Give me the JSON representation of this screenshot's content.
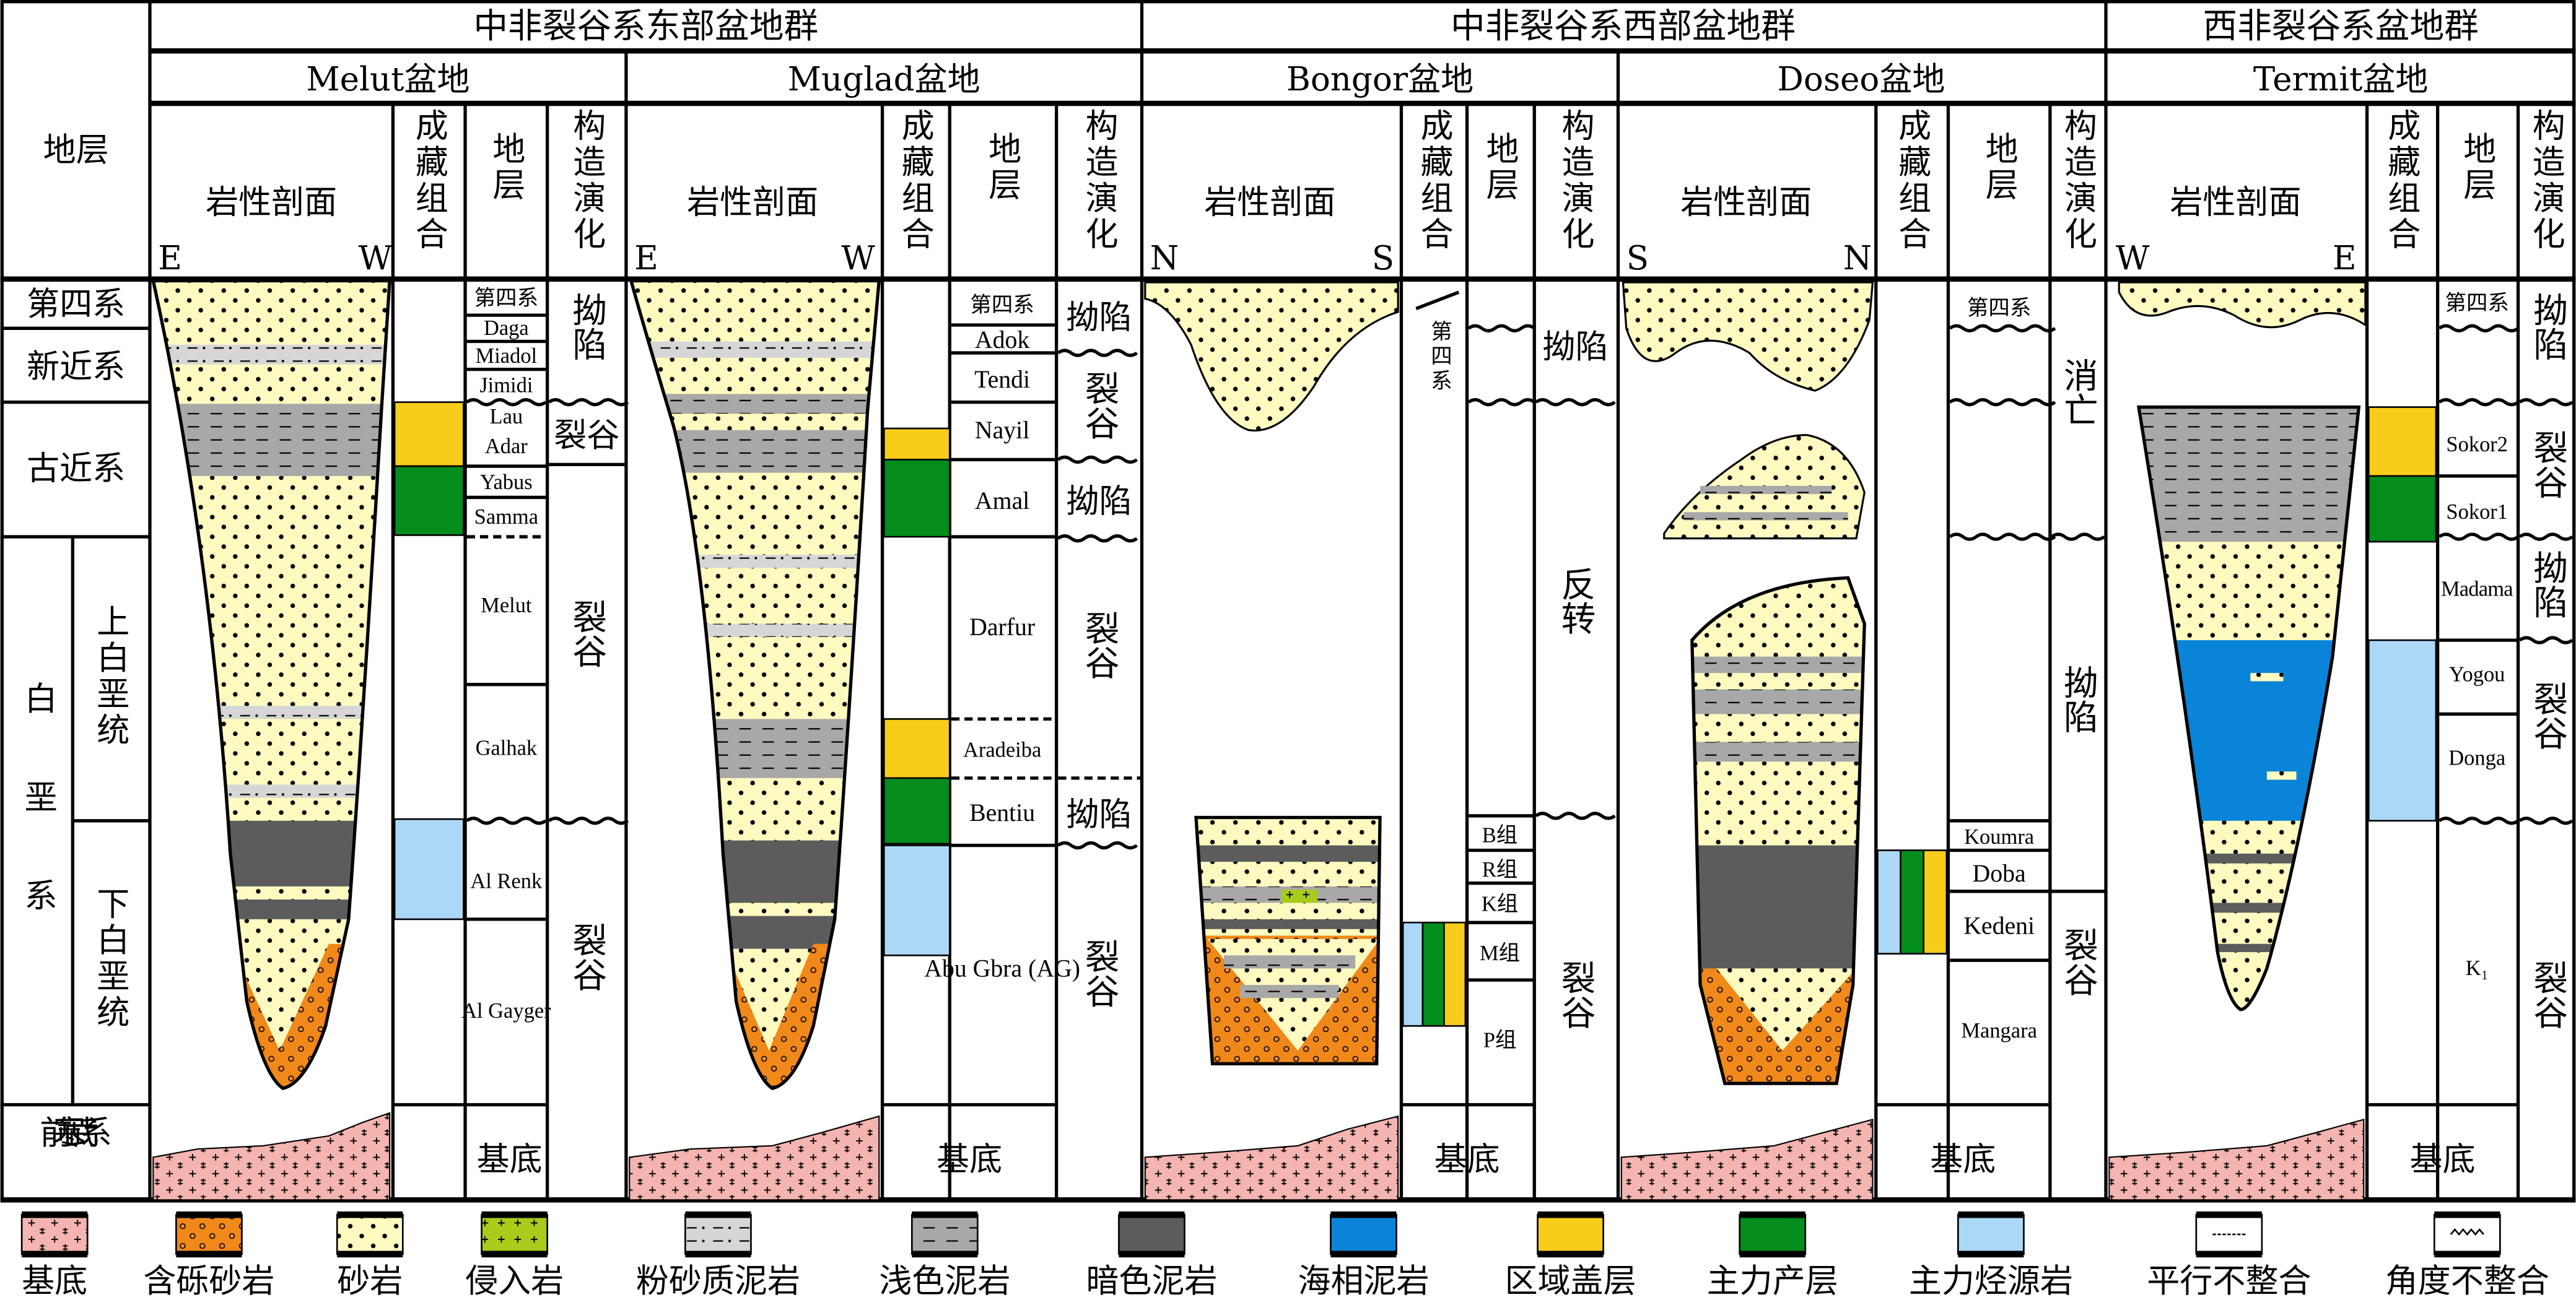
{
  "header": {
    "stratum": "地层",
    "groups": [
      "中非裂谷系东部盆地群",
      "中非裂谷系西部盆地群",
      "西非裂谷系盆地群"
    ],
    "basins": [
      "Melut盆地",
      "Muglad盆地",
      "Bongor盆地",
      "Doseo盆地",
      "Termit盆地"
    ],
    "col_litho": "岩性剖面",
    "col_reservoir": "成藏组合",
    "col_strata": "地层",
    "col_tectonic": "构造演化"
  },
  "directions": {
    "melut": [
      "E",
      "W"
    ],
    "muglad": [
      "E",
      "W"
    ],
    "bongor": [
      "N",
      "S"
    ],
    "doseo": [
      "S",
      "N"
    ],
    "termit": [
      "W",
      "E"
    ]
  },
  "stratigraphy": {
    "quaternary": "第四系",
    "neogene": "新近系",
    "paleogene": "古近系",
    "cretaceous": "白垩系",
    "upper": "上白垩统",
    "lower": "下白垩统",
    "precambrian": "前寒武系"
  },
  "basement": "基底",
  "melut": {
    "formations": [
      "第四系",
      "Daga",
      "Miadol",
      "Jimidi",
      "Lau",
      "Adar",
      "Yabus",
      "Samma",
      "Melut",
      "Galhak",
      "Al Renk",
      "Al Gayger"
    ],
    "tectonics": [
      "拗陷",
      "裂谷",
      "裂谷",
      "裂谷"
    ]
  },
  "muglad": {
    "formations": [
      "第四系",
      "Adok",
      "Tendi",
      "Nayil",
      "Amal",
      "Darfur",
      "Aradeiba",
      "Bentiu",
      "Abu Gbra (AG)"
    ],
    "tectonics": [
      "拗陷",
      "裂谷",
      "拗陷",
      "裂谷",
      "拗陷",
      "裂谷"
    ]
  },
  "bongor": {
    "formations": [
      "第四系",
      "B组",
      "R组",
      "K组",
      "M组",
      "P组"
    ],
    "tectonics": [
      "拗陷",
      "反转",
      "裂谷"
    ]
  },
  "doseo": {
    "formations": [
      "第四系",
      "Koumra",
      "Doba",
      "Kedeni",
      "Mangara"
    ],
    "tectonics": [
      "消亡",
      "拗陷",
      "裂谷"
    ]
  },
  "termit": {
    "formations": [
      "第四系",
      "Sokor2",
      "Sokor1",
      "Madama",
      "Yogou",
      "Donga",
      "K₁"
    ],
    "tectonics": [
      "拗陷",
      "裂谷",
      "拗陷",
      "裂谷",
      "裂谷"
    ]
  },
  "legend": [
    {
      "label": "基底",
      "color": "#f4b4b0"
    },
    {
      "label": "含砾砂岩",
      "color": "#f0881a"
    },
    {
      "label": "砂岩",
      "color": "#fffbc0"
    },
    {
      "label": "侵入岩",
      "color": "#a8cc1c"
    },
    {
      "label": "粉砂质泥岩",
      "color": "#d6d6d6"
    },
    {
      "label": "浅色泥岩",
      "color": "#a8a8a8"
    },
    {
      "label": "暗色泥岩",
      "color": "#5c5c5c"
    },
    {
      "label": "海相泥岩",
      "color": "#0a84d8"
    },
    {
      "label": "区域盖层",
      "color": "#f8cc1a"
    },
    {
      "label": "主力产层",
      "color": "#048c1c"
    },
    {
      "label": "主力烃源岩",
      "color": "#acd8f8"
    },
    {
      "label": "平行不整合",
      "color": "#ffffff"
    },
    {
      "label": "角度不整合",
      "color": "#ffffff"
    }
  ]
}
